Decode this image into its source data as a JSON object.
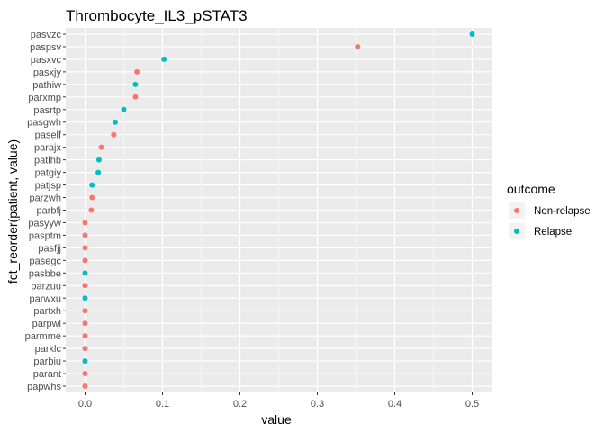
{
  "chart_data": {
    "type": "scatter",
    "title": "Thrombocyte_IL3_pSTAT3",
    "xlabel": "value",
    "ylabel": "fct_reorder(patient, value)",
    "xlim": [
      -0.025,
      0.525
    ],
    "x_ticks": [
      0.0,
      0.1,
      0.2,
      0.3,
      0.4,
      0.5
    ],
    "x_tick_labels": [
      "0.0",
      "0.1",
      "0.2",
      "0.3",
      "0.4",
      "0.5"
    ],
    "grid": true,
    "legend_position": "right",
    "legend": {
      "title": "outcome",
      "entries": [
        {
          "name": "Non-relapse",
          "color": "#F8766D"
        },
        {
          "name": "Relapse",
          "color": "#00BFC4"
        }
      ]
    },
    "categories": [
      "pasvzc",
      "paspsv",
      "pasxvc",
      "pasxjy",
      "pathiw",
      "parxmp",
      "pasrtp",
      "pasgwh",
      "paself",
      "parajx",
      "patlhb",
      "patgiy",
      "patjsp",
      "parzwh",
      "parbfj",
      "pasyyw",
      "pasptm",
      "pasfjj",
      "pasegc",
      "pasbbe",
      "parzuu",
      "parwxu",
      "partxh",
      "parpwl",
      "parmme",
      "parklc",
      "parbiu",
      "parant",
      "papwhs"
    ],
    "points": [
      {
        "patient": "pasvzc",
        "value": 0.5,
        "outcome": "Relapse"
      },
      {
        "patient": "paspsv",
        "value": 0.352,
        "outcome": "Non-relapse"
      },
      {
        "patient": "pasxvc",
        "value": 0.102,
        "outcome": "Relapse"
      },
      {
        "patient": "pasxjy",
        "value": 0.067,
        "outcome": "Non-relapse"
      },
      {
        "patient": "pathiw",
        "value": 0.065,
        "outcome": "Relapse"
      },
      {
        "patient": "parxmp",
        "value": 0.065,
        "outcome": "Non-relapse"
      },
      {
        "patient": "pasrtp",
        "value": 0.05,
        "outcome": "Relapse"
      },
      {
        "patient": "pasgwh",
        "value": 0.039,
        "outcome": "Relapse"
      },
      {
        "patient": "paself",
        "value": 0.037,
        "outcome": "Non-relapse"
      },
      {
        "patient": "parajx",
        "value": 0.021,
        "outcome": "Non-relapse"
      },
      {
        "patient": "patlhb",
        "value": 0.018,
        "outcome": "Relapse"
      },
      {
        "patient": "patgiy",
        "value": 0.017,
        "outcome": "Relapse"
      },
      {
        "patient": "patjsp",
        "value": 0.009,
        "outcome": "Relapse"
      },
      {
        "patient": "parzwh",
        "value": 0.009,
        "outcome": "Non-relapse"
      },
      {
        "patient": "parbfj",
        "value": 0.008,
        "outcome": "Non-relapse"
      },
      {
        "patient": "pasyyw",
        "value": 0.0,
        "outcome": "Non-relapse"
      },
      {
        "patient": "pasptm",
        "value": 0.0,
        "outcome": "Non-relapse"
      },
      {
        "patient": "pasfjj",
        "value": 0.0,
        "outcome": "Non-relapse"
      },
      {
        "patient": "pasegc",
        "value": 0.0,
        "outcome": "Non-relapse"
      },
      {
        "patient": "pasbbe",
        "value": 0.0,
        "outcome": "Relapse"
      },
      {
        "patient": "parzuu",
        "value": 0.0,
        "outcome": "Non-relapse"
      },
      {
        "patient": "parwxu",
        "value": 0.0,
        "outcome": "Relapse"
      },
      {
        "patient": "partxh",
        "value": 0.0,
        "outcome": "Non-relapse"
      },
      {
        "patient": "parpwl",
        "value": 0.0,
        "outcome": "Non-relapse"
      },
      {
        "patient": "parmme",
        "value": 0.0,
        "outcome": "Non-relapse"
      },
      {
        "patient": "parklc",
        "value": 0.0,
        "outcome": "Non-relapse"
      },
      {
        "patient": "parbiu",
        "value": 0.0,
        "outcome": "Relapse"
      },
      {
        "patient": "parant",
        "value": 0.0,
        "outcome": "Non-relapse"
      },
      {
        "patient": "papwhs",
        "value": 0.0,
        "outcome": "Non-relapse"
      }
    ]
  }
}
